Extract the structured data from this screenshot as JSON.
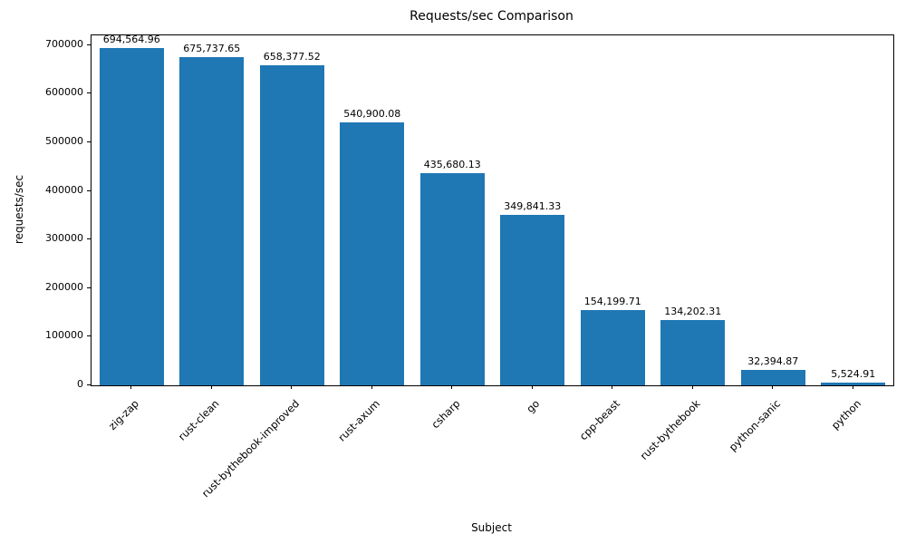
{
  "chart_data": {
    "type": "bar",
    "title": "Requests/sec Comparison",
    "xlabel": "Subject",
    "ylabel": "requests/sec",
    "categories": [
      "zig-zap",
      "rust-clean",
      "rust-bythebook-improved",
      "rust-axum",
      "csharp",
      "go",
      "cpp-beast",
      "rust-bythebook",
      "python-sanic",
      "python"
    ],
    "values": [
      694564.96,
      675737.65,
      658377.52,
      540900.08,
      435680.13,
      349841.33,
      154199.71,
      134202.31,
      32394.87,
      5524.91
    ],
    "value_labels": [
      "694,564.96",
      "675,737.65",
      "658,377.52",
      "540,900.08",
      "435,680.13",
      "349,841.33",
      "154,199.71",
      "134,202.31",
      "32,394.87",
      "5,524.91"
    ],
    "ylim": [
      0,
      720000
    ],
    "yticks": [
      0,
      100000,
      200000,
      300000,
      400000,
      500000,
      600000,
      700000
    ],
    "bar_color": "#1f77b4",
    "bar_width_fraction": 0.8,
    "grid": false,
    "legend": false
  }
}
